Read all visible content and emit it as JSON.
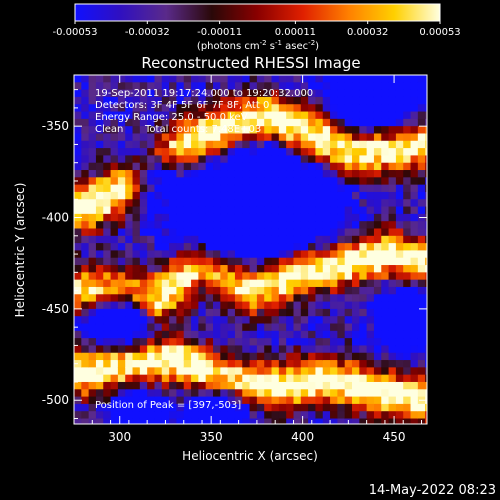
{
  "chart_data": {
    "type": "heatmap",
    "title": "Reconstructed RHESSI Image",
    "xlabel": "Heliocentric X (arcsec)",
    "ylabel": "Heliocentric Y (arcsec)",
    "xlim": [
      275,
      468
    ],
    "ylim": [
      -513,
      -322
    ],
    "x_ticks": [
      "300",
      "350",
      "400",
      "450"
    ],
    "y_ticks": [
      "-350",
      "-400",
      "-450",
      "-500"
    ],
    "x_tick_values": [
      300,
      350,
      400,
      450
    ],
    "y_tick_values": [
      -350,
      -400,
      -450,
      -500
    ],
    "colorbar": {
      "ticks": [
        "-0.00053",
        "-0.00032",
        "-0.00011",
        "0.00011",
        "0.00032",
        "0.00053"
      ],
      "tick_values": [
        -0.00053,
        -0.00032,
        -0.00011,
        0.00011,
        0.00032,
        0.00053
      ],
      "units": "(photons cm-2 s-1 asec-2)",
      "colormap": [
        "#1010ff",
        "#3010c0",
        "#5a2a8a",
        "#2a0808",
        "#8a0000",
        "#e02000",
        "#ff8000",
        "#ffd000",
        "#ffffe0"
      ]
    },
    "annotations": {
      "time_range": "19-Sep-2011 19:17:24.000 to 19:20:32.000",
      "detectors": "Detectors: 3F 4F 5F 6F 7F 8F, Att 0",
      "energy": "Energy Range: 25.0 - 50.0 keV",
      "algorithm": "Clean",
      "counts": "Total counts: 7.48E+03",
      "peak": "Position of Peak = [397,-503]"
    },
    "bright_ridges": [
      {
        "name": "upper ridge",
        "points": [
          [
            280,
            -395
          ],
          [
            300,
            -385
          ],
          [
            320,
            -370
          ],
          [
            340,
            -358
          ],
          [
            360,
            -350
          ],
          [
            380,
            -345
          ],
          [
            400,
            -352
          ],
          [
            430,
            -365
          ],
          [
            465,
            -360
          ]
        ]
      },
      {
        "name": "middle ridge",
        "points": [
          [
            280,
            -440
          ],
          [
            300,
            -440
          ],
          [
            320,
            -445
          ],
          [
            345,
            -425
          ],
          [
            370,
            -440
          ],
          [
            400,
            -430
          ],
          [
            425,
            -425
          ],
          [
            450,
            -420
          ],
          [
            465,
            -425
          ]
        ]
      },
      {
        "name": "lower ridge",
        "points": [
          [
            280,
            -485
          ],
          [
            305,
            -480
          ],
          [
            330,
            -478
          ],
          [
            360,
            -490
          ],
          [
            390,
            -492
          ],
          [
            410,
            -488
          ],
          [
            440,
            -495
          ],
          [
            465,
            -500
          ]
        ]
      }
    ],
    "dark_regions": [
      {
        "center": [
          318,
          -375
        ],
        "radius": 10
      },
      {
        "center": [
          360,
          -400
        ],
        "radius": 20
      },
      {
        "center": [
          380,
          -380
        ],
        "radius": 12
      },
      {
        "center": [
          440,
          -330
        ],
        "radius": 16
      },
      {
        "center": [
          400,
          -395
        ],
        "radius": 14
      },
      {
        "center": [
          300,
          -455
        ],
        "radius": 12
      },
      {
        "center": [
          460,
          -455
        ],
        "radius": 12
      },
      {
        "center": [
          310,
          -505
        ],
        "radius": 8
      },
      {
        "center": [
          355,
          -505
        ],
        "radius": 10
      }
    ]
  },
  "timestamp": "14-May-2022 08:23"
}
